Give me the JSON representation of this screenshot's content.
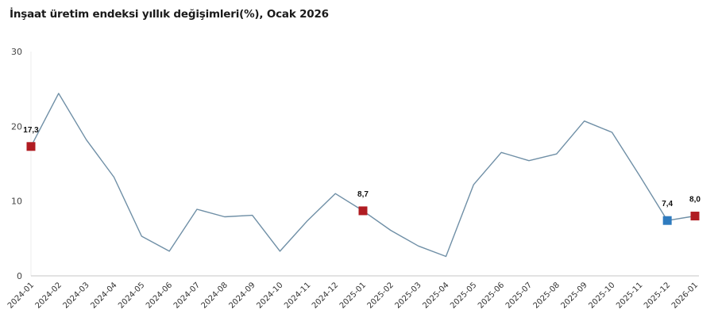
{
  "title": "İnşaat üretim endeksi yıllık değişimleri(%), Ocak 2026",
  "colors": {
    "line": "#6f8fa6",
    "highlight_red": "#b01c22",
    "highlight_blue": "#2e7bbf",
    "axis": "#d9d9d9"
  },
  "chart_data": {
    "type": "line",
    "title": "İnşaat üretim endeksi yıllık değişimleri(%), Ocak 2026",
    "xlabel": "",
    "ylabel": "",
    "ylim": [
      0,
      30
    ],
    "yticks": [
      0,
      10,
      20,
      30
    ],
    "grid": false,
    "legend": null,
    "categories": [
      "2024-01",
      "2024-02",
      "2024-03",
      "2024-04",
      "2024-05",
      "2024-06",
      "2024-07",
      "2024-08",
      "2024-09",
      "2024-10",
      "2024-11",
      "2024-12",
      "2025-01",
      "2025-02",
      "2025-03",
      "2025-04",
      "2025-05",
      "2025-06",
      "2025-07",
      "2025-08",
      "2025-09",
      "2025-10",
      "2025-11",
      "2025-12",
      "2026-01"
    ],
    "series": [
      {
        "name": "Yıllık değişim (%)",
        "values": [
          17.3,
          24.4,
          18.2,
          13.2,
          5.3,
          3.3,
          8.9,
          7.9,
          8.1,
          3.3,
          7.4,
          11.0,
          8.7,
          6.1,
          4.0,
          2.6,
          12.2,
          16.5,
          15.4,
          16.3,
          20.7,
          19.2,
          13.4,
          7.4,
          8.0
        ]
      }
    ],
    "annotations": [
      {
        "category": "2024-01",
        "label": "17,3",
        "marker": "square",
        "color": "#b01c22"
      },
      {
        "category": "2025-01",
        "label": "8,7",
        "marker": "square",
        "color": "#b01c22"
      },
      {
        "category": "2025-12",
        "label": "7,4",
        "marker": "square",
        "color": "#2e7bbf"
      },
      {
        "category": "2026-01",
        "label": "8,0",
        "marker": "square",
        "color": "#b01c22"
      }
    ]
  }
}
